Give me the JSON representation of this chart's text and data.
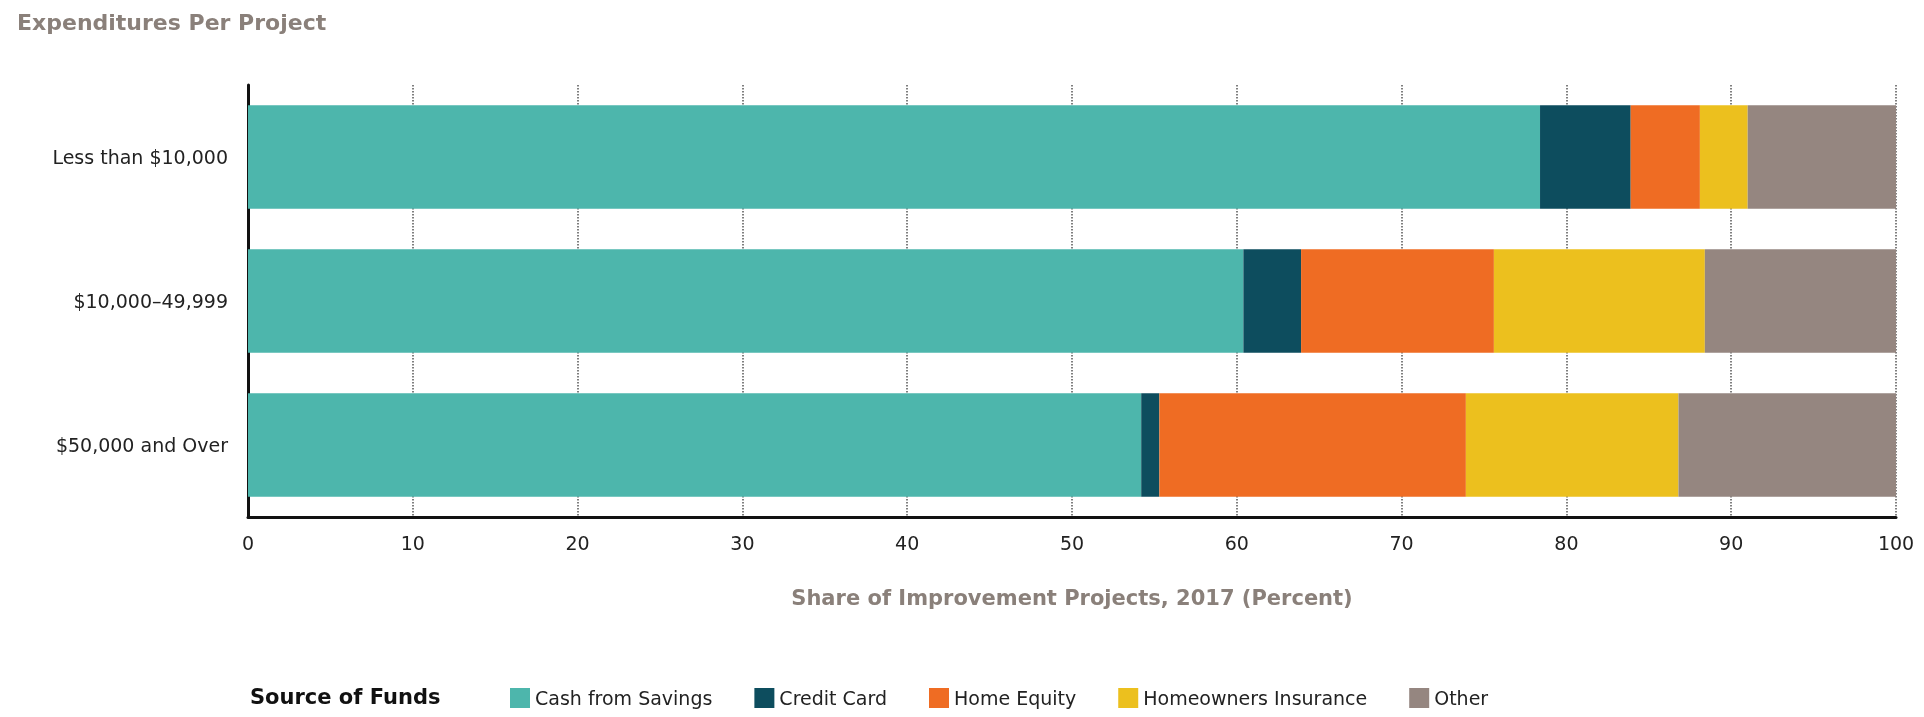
{
  "chart_data": {
    "type": "bar",
    "orientation": "horizontal",
    "stacked": true,
    "title": "Expenditures Per Project",
    "xlabel": "Share of Improvement Projects, 2017 (Percent)",
    "legend_title": "Source of Funds",
    "categories": [
      "Less than $10,000",
      "$10,000–49,999",
      "$50,000 and Over"
    ],
    "series": [
      {
        "name": "Cash from Savings",
        "color": "#4db6ac",
        "values": [
          78.4,
          60.4,
          54.2
        ]
      },
      {
        "name": "Credit Card",
        "color": "#0d4d5e",
        "values": [
          5.5,
          3.5,
          1.1
        ]
      },
      {
        "name": "Home Equity",
        "color": "#ef6c23",
        "values": [
          4.2,
          11.7,
          18.6
        ]
      },
      {
        "name": "Homeowners Insurance",
        "color": "#ecc01e",
        "values": [
          2.9,
          12.8,
          12.9
        ]
      },
      {
        "name": "Other",
        "color": "#958680",
        "values": [
          9.0,
          11.6,
          13.2
        ]
      }
    ],
    "xlim": [
      0,
      100
    ],
    "xticks": [
      0,
      10,
      20,
      30,
      40,
      50,
      60,
      70,
      80,
      90,
      100
    ],
    "grid": "x",
    "legend": "bottom"
  }
}
